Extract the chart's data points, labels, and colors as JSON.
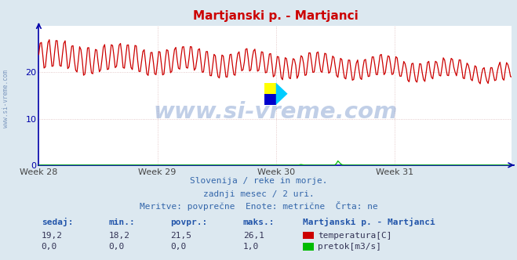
{
  "title": "Martjanski p. - Martjanci",
  "title_color": "#cc0000",
  "bg_color": "#dce8f0",
  "plot_bg_color": "#ffffff",
  "grid_color": "#ddbbbb",
  "axis_color": "#0000aa",
  "x_ticks": [
    "Week 28",
    "Week 29",
    "Week 30",
    "Week 31"
  ],
  "ylim": [
    0,
    30
  ],
  "yticks": [
    0,
    10,
    20
  ],
  "n_points": 360,
  "temp_color": "#cc0000",
  "flow_color": "#00bb00",
  "watermark_text": "www.si-vreme.com",
  "watermark_color": "#2255aa",
  "subtitle_lines": [
    "Slovenija / reke in morje.",
    "zadnji mesec / 2 uri.",
    "Meritve: povprečne  Enote: metrične  Črta: ne"
  ],
  "subtitle_color": "#3366aa",
  "footer_header_color": "#2255aa",
  "footer_value_color": "#333355",
  "legend_title": "Martjanski p. - Martjanci",
  "legend_title_color": "#2255aa",
  "legend_temp": "temperatura[C]",
  "legend_flow": "pretok[m3/s]",
  "sedaj1": "19,2",
  "min1": "18,2",
  "povpr1": "21,5",
  "maks1": "26,1",
  "sedaj2": "0,0",
  "min2": "0,0",
  "povpr2": "0,0",
  "maks2": "1,0",
  "left_label": "www.si-vreme.com"
}
